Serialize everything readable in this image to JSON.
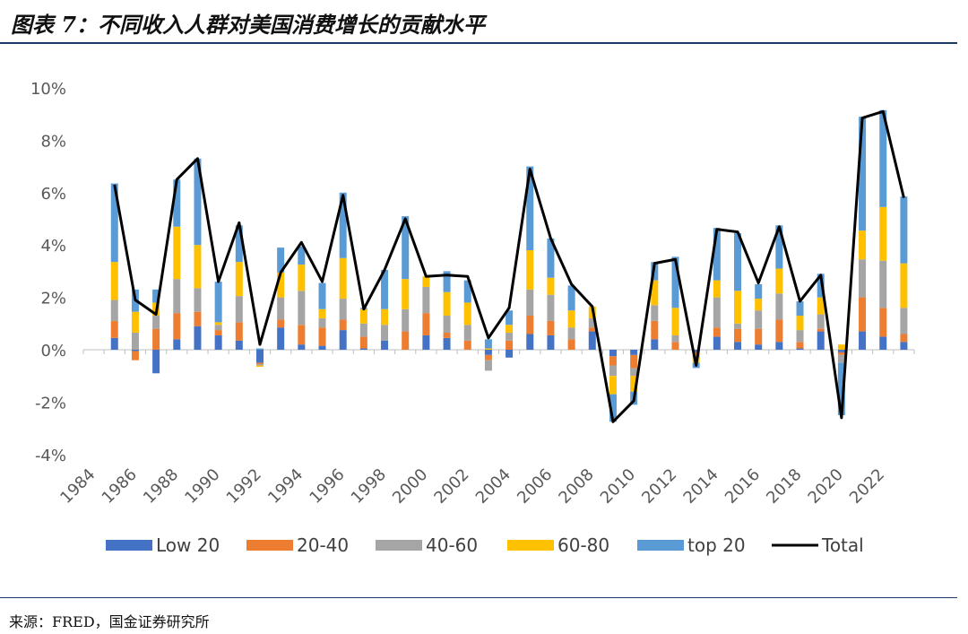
{
  "title": "图表 7：不同收入人群对美国消费增长的贡献水平",
  "source": "来源：FRED，国金证券研究所",
  "chart_data": {
    "type": "bar",
    "stacked": true,
    "x": [
      1985,
      1986,
      1987,
      1988,
      1989,
      1990,
      1991,
      1992,
      1993,
      1994,
      1995,
      1996,
      1997,
      1998,
      1999,
      2000,
      2001,
      2002,
      2003,
      2004,
      2005,
      2006,
      2007,
      2008,
      2009,
      2010,
      2011,
      2012,
      2013,
      2014,
      2015,
      2016,
      2017,
      2018,
      2019,
      2020,
      2021,
      2022,
      2023
    ],
    "x_tick_labels": [
      "1984",
      "1986",
      "1988",
      "1990",
      "1992",
      "1994",
      "1996",
      "1998",
      "2000",
      "2002",
      "2004",
      "2006",
      "2008",
      "2010",
      "2012",
      "2014",
      "2016",
      "2018",
      "2020",
      "2022"
    ],
    "y_ticks": [
      -4,
      -2,
      0,
      2,
      4,
      6,
      8,
      10
    ],
    "y_tick_labels": [
      "-4%",
      "-2%",
      "0%",
      "2%",
      "4%",
      "6%",
      "8%",
      "10%"
    ],
    "ylim": [
      -4,
      10
    ],
    "legend_position": "bottom",
    "series": [
      {
        "name": "Low 20",
        "color": "#4472C4",
        "values": [
          0.45,
          -0.05,
          -0.9,
          0.4,
          0.9,
          0.55,
          0.35,
          -0.5,
          0.85,
          0.2,
          0.15,
          0.75,
          0.05,
          0.35,
          0.0,
          0.55,
          0.45,
          0.0,
          -0.2,
          -0.3,
          0.6,
          0.55,
          0.0,
          0.7,
          -0.25,
          -0.2,
          0.4,
          0.0,
          -0.1,
          0.5,
          0.3,
          0.2,
          0.3,
          0.05,
          0.7,
          -0.1,
          0.7,
          0.5,
          0.3
        ]
      },
      {
        "name": "20-40",
        "color": "#ED7D31",
        "values": [
          0.65,
          -0.35,
          0.8,
          1.0,
          0.55,
          0.2,
          0.7,
          -0.05,
          0.3,
          0.75,
          0.7,
          0.4,
          0.45,
          0.0,
          0.7,
          0.85,
          0.2,
          0.35,
          -0.2,
          0.35,
          0.7,
          0.55,
          0.4,
          0.15,
          -0.35,
          -0.5,
          0.7,
          0.3,
          -0.1,
          0.35,
          0.5,
          0.6,
          0.85,
          0.25,
          0.1,
          -0.1,
          1.3,
          1.1,
          0.3
        ]
      },
      {
        "name": "40-60",
        "color": "#A5A5A5",
        "values": [
          0.8,
          0.65,
          0.5,
          1.3,
          0.9,
          0.2,
          1.0,
          -0.05,
          0.85,
          1.3,
          0.35,
          0.8,
          0.5,
          0.6,
          0.85,
          1.0,
          0.65,
          0.6,
          -0.4,
          0.3,
          1.0,
          1.0,
          0.45,
          0.35,
          -0.4,
          -0.3,
          0.6,
          0.25,
          -0.1,
          1.15,
          0.2,
          0.7,
          1.0,
          0.45,
          0.55,
          -0.3,
          1.45,
          1.8,
          1.0
        ]
      },
      {
        "name": "60-80",
        "color": "#FFC000",
        "values": [
          1.45,
          0.8,
          0.5,
          2.0,
          1.65,
          0.1,
          1.3,
          -0.05,
          0.95,
          1.0,
          0.35,
          1.55,
          0.55,
          0.6,
          1.15,
          0.4,
          0.9,
          0.85,
          0.05,
          0.3,
          1.5,
          0.65,
          0.65,
          0.45,
          -0.7,
          -0.6,
          0.95,
          1.05,
          -0.2,
          0.65,
          1.25,
          0.45,
          0.95,
          0.55,
          0.65,
          0.2,
          1.1,
          2.05,
          1.7
        ]
      },
      {
        "name": "top 20",
        "color": "#5B9BD5",
        "values": [
          3.0,
          0.85,
          0.5,
          1.8,
          3.3,
          1.55,
          1.4,
          0.05,
          0.95,
          0.7,
          1.0,
          2.5,
          0.05,
          1.5,
          2.4,
          0.0,
          0.8,
          0.85,
          0.35,
          0.55,
          3.2,
          1.5,
          0.95,
          0.0,
          -1.05,
          -0.5,
          0.7,
          1.95,
          -0.2,
          2.0,
          2.2,
          0.55,
          1.65,
          0.55,
          0.9,
          -2.0,
          4.35,
          3.7,
          2.55
        ]
      },
      {
        "name": "Total",
        "color": "#000000",
        "type": "line",
        "values": [
          6.3,
          1.9,
          1.35,
          6.5,
          7.3,
          2.6,
          4.85,
          0.2,
          2.95,
          4.1,
          2.6,
          5.9,
          1.55,
          3.05,
          5.0,
          2.8,
          2.85,
          2.8,
          0.45,
          1.6,
          6.9,
          4.25,
          2.5,
          1.65,
          -2.75,
          -1.95,
          3.3,
          3.45,
          -0.6,
          4.6,
          4.5,
          2.55,
          4.7,
          1.85,
          2.85,
          -2.6,
          8.85,
          9.1,
          5.8
        ]
      }
    ]
  }
}
